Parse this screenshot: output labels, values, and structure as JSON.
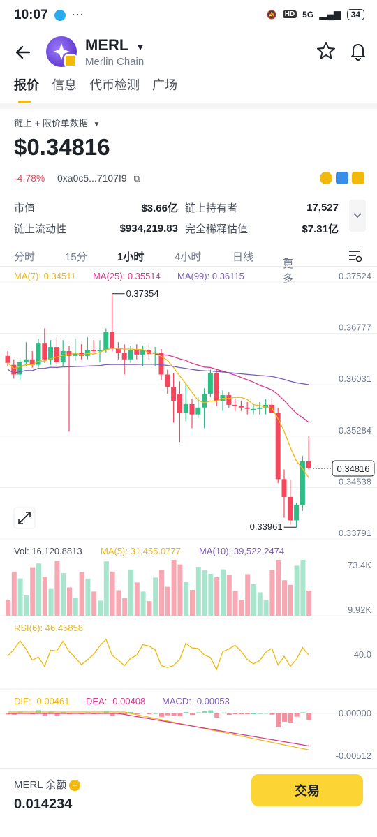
{
  "status_bar": {
    "time": "10:07",
    "signal": "5G",
    "battery": "34"
  },
  "header": {
    "symbol": "MERL",
    "chain": "Merlin Chain"
  },
  "tabs": [
    {
      "label": "报价",
      "active": true
    },
    {
      "label": "信息",
      "active": false
    },
    {
      "label": "代币检测",
      "active": false
    },
    {
      "label": "广场",
      "active": false
    }
  ],
  "data_source": "链上 + 限价单数据",
  "price": "$0.34816",
  "change": "-4.78%",
  "address": "0xa0c5...7107f9",
  "stats": {
    "market_cap_label": "市值",
    "market_cap": "$3.66亿",
    "holders_label": "链上持有者",
    "holders": "17,527",
    "liquidity_label": "链上流动性",
    "liquidity": "$934,219.83",
    "fdv_label": "完全稀释估值",
    "fdv": "$7.31亿"
  },
  "timeframes": [
    {
      "label": "分时",
      "selected": false
    },
    {
      "label": "15分",
      "selected": false
    },
    {
      "label": "1小时",
      "selected": true
    },
    {
      "label": "4小时",
      "selected": false
    },
    {
      "label": "日线",
      "selected": false
    },
    {
      "label": "更多",
      "selected": false
    }
  ],
  "indicators": {
    "ma7": "MA(7): 0.34511",
    "ma25": "MA(25): 0.35514",
    "ma99": "MA(99): 0.36115",
    "vol": "Vol: 16,120.8813",
    "vol_ma5": "MA(5): 31,455.0777",
    "vol_ma10": "MA(10): 39,522.2474",
    "rsi": "RSI(6): 46.45858",
    "dif": "DIF: -0.00461",
    "dea": "DEA: -0.00408",
    "macd": "MACD: -0.00053"
  },
  "axis": {
    "price_ticks": [
      "0.37524",
      "0.36777",
      "0.36031",
      "0.35284",
      "0.34538",
      "0.33791"
    ],
    "vol_ticks": [
      "73.4K",
      "9.92K"
    ],
    "rsi_ticks": [
      "40.0"
    ],
    "macd_ticks": [
      "0.00000",
      "-0.00512"
    ],
    "high_label": "0.37354",
    "low_label": "0.33961",
    "current_label": "0.34816"
  },
  "colors": {
    "up": "#2ebd85",
    "down": "#f6465d",
    "ma7": "#f0b90b",
    "ma25": "#d63a8f",
    "ma99": "#7b5cb5",
    "accent": "#fcd535"
  },
  "chart_data": {
    "type": "candlestick",
    "candles_ohlc": [
      [
        0.3645,
        0.3652,
        0.363,
        0.3635
      ],
      [
        0.3632,
        0.364,
        0.3612,
        0.3618
      ],
      [
        0.3618,
        0.364,
        0.361,
        0.3636
      ],
      [
        0.3636,
        0.3665,
        0.363,
        0.364
      ],
      [
        0.364,
        0.3652,
        0.3628,
        0.3632
      ],
      [
        0.3632,
        0.367,
        0.3628,
        0.3663
      ],
      [
        0.3663,
        0.3685,
        0.3635,
        0.364
      ],
      [
        0.364,
        0.3668,
        0.3632,
        0.3658
      ],
      [
        0.3658,
        0.3672,
        0.363,
        0.3636
      ],
      [
        0.3636,
        0.3668,
        0.363,
        0.3652
      ],
      [
        0.3652,
        0.366,
        0.3535,
        0.3645
      ],
      [
        0.3645,
        0.367,
        0.3638,
        0.365
      ],
      [
        0.365,
        0.3662,
        0.364,
        0.3645
      ],
      [
        0.3645,
        0.3672,
        0.364,
        0.3654
      ],
      [
        0.3654,
        0.3668,
        0.3648,
        0.3652
      ],
      [
        0.3652,
        0.3668,
        0.3636,
        0.3654
      ],
      [
        0.3654,
        0.3685,
        0.365,
        0.368
      ],
      [
        0.368,
        0.3735,
        0.3652,
        0.3656
      ],
      [
        0.3656,
        0.3665,
        0.364,
        0.3649
      ],
      [
        0.3649,
        0.3662,
        0.3618,
        0.364
      ],
      [
        0.364,
        0.366,
        0.3635,
        0.3654
      ],
      [
        0.3654,
        0.3662,
        0.364,
        0.3647
      ],
      [
        0.3647,
        0.366,
        0.363,
        0.3654
      ],
      [
        0.3654,
        0.3662,
        0.364,
        0.3648
      ],
      [
        0.3648,
        0.3658,
        0.363,
        0.365
      ],
      [
        0.365,
        0.3655,
        0.361,
        0.3618
      ],
      [
        0.3618,
        0.3625,
        0.359,
        0.36
      ],
      [
        0.36,
        0.362,
        0.3548,
        0.358
      ],
      [
        0.359,
        0.3608,
        0.352,
        0.3562
      ],
      [
        0.3562,
        0.3605,
        0.355,
        0.3575
      ],
      [
        0.3575,
        0.3582,
        0.354,
        0.356
      ],
      [
        0.356,
        0.3585,
        0.3555,
        0.357
      ],
      [
        0.357,
        0.3598,
        0.354,
        0.359
      ],
      [
        0.359,
        0.3625,
        0.3585,
        0.362
      ],
      [
        0.362,
        0.3625,
        0.3572,
        0.358
      ],
      [
        0.358,
        0.3595,
        0.3565,
        0.3588
      ],
      [
        0.3588,
        0.3592,
        0.357,
        0.3574
      ],
      [
        0.3574,
        0.3582,
        0.3565,
        0.3572
      ],
      [
        0.3572,
        0.358,
        0.3565,
        0.357
      ],
      [
        0.357,
        0.3578,
        0.356,
        0.3568
      ],
      [
        0.3568,
        0.3575,
        0.356,
        0.3568
      ],
      [
        0.3568,
        0.3578,
        0.356,
        0.357
      ],
      [
        0.357,
        0.3582,
        0.356,
        0.3574
      ],
      [
        0.3574,
        0.3582,
        0.3565,
        0.3562
      ],
      [
        0.3562,
        0.357,
        0.346,
        0.3466
      ],
      [
        0.3466,
        0.348,
        0.341,
        0.344
      ],
      [
        0.344,
        0.3465,
        0.34,
        0.3406
      ],
      [
        0.3406,
        0.3432,
        0.3396,
        0.3428
      ],
      [
        0.3428,
        0.35,
        0.342,
        0.3492
      ],
      [
        0.3492,
        0.3528,
        0.348,
        0.3482
      ]
    ],
    "price_range": [
      0.33791,
      0.37524
    ],
    "current_price": 0.34816,
    "high": 0.37354,
    "low": 0.33961
  }
}
